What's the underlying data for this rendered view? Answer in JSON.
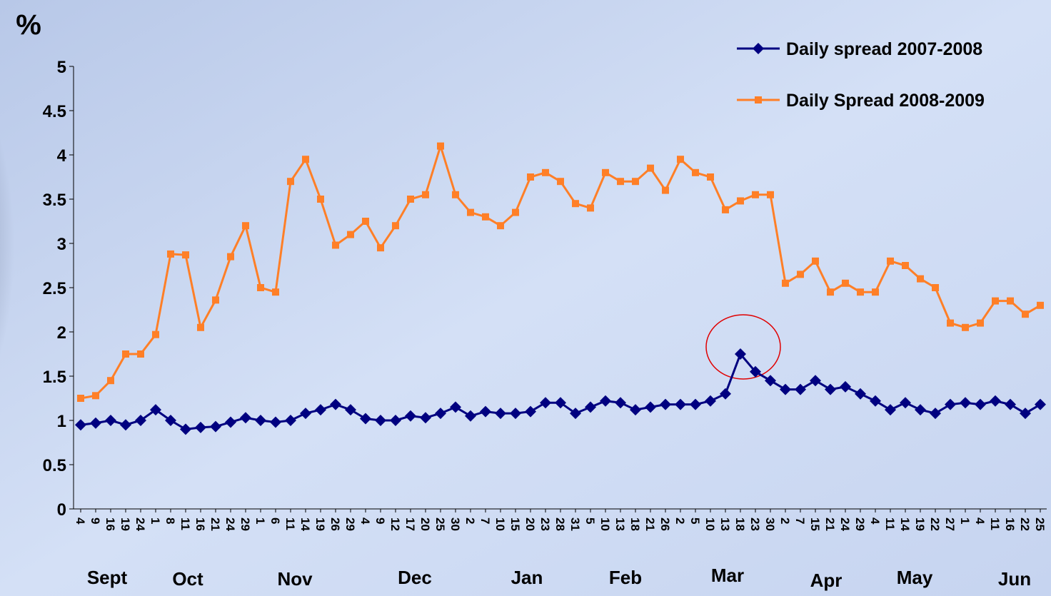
{
  "chart_data": {
    "type": "line",
    "y_axis_label": "%",
    "categories": [
      "4",
      "9",
      "16",
      "19",
      "24",
      "1",
      "8",
      "11",
      "16",
      "21",
      "24",
      "29",
      "1",
      "6",
      "11",
      "14",
      "19",
      "26",
      "29",
      "4",
      "9",
      "12",
      "17",
      "20",
      "25",
      "30",
      "2",
      "7",
      "10",
      "15",
      "20",
      "23",
      "28",
      "31",
      "5",
      "10",
      "13",
      "18",
      "21",
      "26",
      "2",
      "5",
      "10",
      "13",
      "18",
      "23",
      "30",
      "2",
      "7",
      "15",
      "21",
      "24",
      "29",
      "4",
      "11",
      "14",
      "19",
      "22",
      "27",
      "1",
      "4",
      "11",
      "16",
      "22",
      "25"
    ],
    "months": [
      "Sept",
      "Oct",
      "Nov",
      "Dec",
      "Jan",
      "Feb",
      "Mar",
      "Apr",
      "May",
      "Jun"
    ],
    "series": [
      {
        "name": "Daily spread 2007-2008",
        "color": "#000080",
        "marker": "diamond",
        "values": [
          0.95,
          0.97,
          1.0,
          0.95,
          1.0,
          1.12,
          1.0,
          0.9,
          0.92,
          0.93,
          0.98,
          1.03,
          1.0,
          0.98,
          1.0,
          1.08,
          1.12,
          1.18,
          1.12,
          1.02,
          1.0,
          1.0,
          1.05,
          1.03,
          1.08,
          1.15,
          1.05,
          1.1,
          1.08,
          1.08,
          1.1,
          1.2,
          1.2,
          1.08,
          1.15,
          1.22,
          1.2,
          1.12,
          1.15,
          1.18,
          1.18,
          1.18,
          1.22,
          1.3,
          1.75,
          1.55,
          1.45,
          1.35,
          1.35,
          1.45,
          1.35,
          1.38,
          1.3,
          1.22,
          1.12,
          1.2,
          1.12,
          1.08,
          1.18,
          1.2,
          1.18,
          1.22,
          1.18,
          1.08,
          1.18
        ]
      },
      {
        "name": "Daily Spread 2008-2009",
        "color": "#ff7f27",
        "marker": "square",
        "values": [
          1.25,
          1.28,
          1.45,
          1.75,
          1.75,
          1.97,
          2.88,
          2.87,
          2.05,
          2.36,
          2.85,
          3.2,
          2.5,
          2.45,
          3.7,
          3.95,
          3.5,
          2.98,
          3.1,
          3.25,
          2.95,
          3.2,
          3.5,
          3.55,
          4.1,
          3.55,
          3.35,
          3.3,
          3.2,
          3.35,
          3.75,
          3.8,
          3.7,
          3.45,
          3.4,
          3.8,
          3.7,
          3.7,
          3.85,
          3.6,
          3.95,
          3.8,
          3.75,
          3.38,
          3.48,
          3.55,
          3.55,
          2.55,
          2.65,
          2.8,
          2.45,
          2.55,
          2.45,
          2.45,
          2.8,
          2.75,
          2.6,
          2.5,
          2.1,
          2.05,
          2.1,
          2.35,
          2.35,
          2.2,
          2.3
        ]
      }
    ],
    "ylim": [
      0,
      5
    ],
    "yticks": [
      0,
      0.5,
      1,
      1.5,
      2,
      2.5,
      3,
      3.5,
      4,
      4.5,
      5
    ],
    "legend": "top-right"
  }
}
